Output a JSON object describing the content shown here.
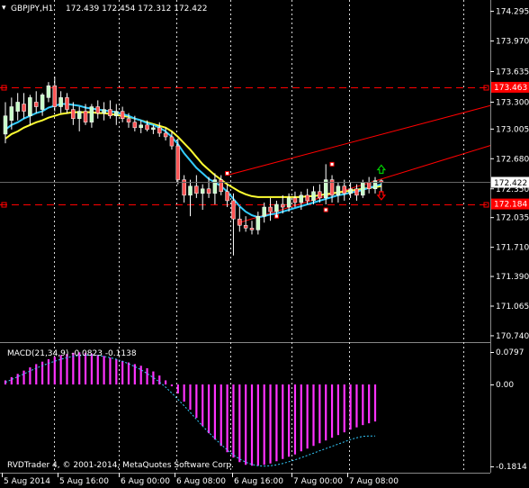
{
  "header": {
    "symbol_label": "GBPJPY,H1",
    "ohlc": "172.439 172.454 172.312 172.422",
    "dropdown_glyph": "▾"
  },
  "macd": {
    "label": "MACD(21,34,9) -0.0823 -0.1138",
    "axis_top": "0.0797",
    "axis_zero": "0.00",
    "axis_bottom": "-0.1814"
  },
  "footer_text": "RVDTrader 4, © 2001-2014, MetaQuotes Software Corp.",
  "colors": {
    "background": "#000000",
    "bull_candle": "#c8ffc8",
    "bear_candle": "#ff5555",
    "ma_fast": "#33ccff",
    "ma_slow": "#ffff33",
    "hline": "#ff0000",
    "channel": "#ff0000",
    "macd_hist": "#ff33ff",
    "macd_signal": "#33ccff",
    "grid_vertical": "#ffffff",
    "price_marker_current": "#ffffff",
    "price_marker_red": "#ff0000",
    "arrow_up": "#00cc00",
    "arrow_down": "#ff0000"
  },
  "chart_data": [
    {
      "type": "candlestick",
      "title": "GBPJPY,H1",
      "y_ticks": [
        "174.295",
        "173.970",
        "173.635",
        "173.300",
        "173.005",
        "172.680",
        "172.350",
        "172.035",
        "171.710",
        "171.390",
        "171.065",
        "170.740"
      ],
      "ylim": [
        170.69,
        174.38
      ],
      "current_price": "172.422",
      "hlines": [
        {
          "value": 173.463,
          "label": "173.463"
        },
        {
          "value": 172.184,
          "label": "172.184"
        }
      ],
      "x_labels": [
        "5 Aug 2014",
        "5 Aug 16:00",
        "6 Aug 00:00",
        "6 Aug 08:00",
        "6 Aug 16:00",
        "7 Aug 00:00",
        "7 Aug 08:00"
      ],
      "candles": [
        {
          "o": 172.95,
          "h": 173.3,
          "l": 172.85,
          "c": 173.15
        },
        {
          "o": 173.1,
          "h": 173.35,
          "l": 173.0,
          "c": 173.25
        },
        {
          "o": 173.2,
          "h": 173.4,
          "l": 173.1,
          "c": 173.3
        },
        {
          "o": 173.28,
          "h": 173.4,
          "l": 173.12,
          "c": 173.2
        },
        {
          "o": 173.15,
          "h": 173.38,
          "l": 173.05,
          "c": 173.35
        },
        {
          "o": 173.3,
          "h": 173.42,
          "l": 173.18,
          "c": 173.25
        },
        {
          "o": 173.22,
          "h": 173.4,
          "l": 173.15,
          "c": 173.38
        },
        {
          "o": 173.35,
          "h": 173.52,
          "l": 173.3,
          "c": 173.48
        },
        {
          "o": 173.48,
          "h": 173.58,
          "l": 173.2,
          "c": 173.25
        },
        {
          "o": 173.25,
          "h": 173.42,
          "l": 173.18,
          "c": 173.35
        },
        {
          "o": 173.35,
          "h": 173.4,
          "l": 173.18,
          "c": 173.22
        },
        {
          "o": 173.22,
          "h": 173.3,
          "l": 173.05,
          "c": 173.12
        },
        {
          "o": 173.12,
          "h": 173.25,
          "l": 172.98,
          "c": 173.2
        },
        {
          "o": 173.2,
          "h": 173.28,
          "l": 173.05,
          "c": 173.08
        },
        {
          "o": 173.08,
          "h": 173.28,
          "l": 173.02,
          "c": 173.25
        },
        {
          "o": 173.25,
          "h": 173.32,
          "l": 173.12,
          "c": 173.18
        },
        {
          "o": 173.18,
          "h": 173.3,
          "l": 173.1,
          "c": 173.22
        },
        {
          "o": 173.22,
          "h": 173.32,
          "l": 173.12,
          "c": 173.15
        },
        {
          "o": 173.15,
          "h": 173.28,
          "l": 173.05,
          "c": 173.2
        },
        {
          "o": 173.2,
          "h": 173.25,
          "l": 173.08,
          "c": 173.12
        },
        {
          "o": 173.12,
          "h": 173.18,
          "l": 173.02,
          "c": 173.08
        },
        {
          "o": 173.08,
          "h": 173.15,
          "l": 172.98,
          "c": 173.02
        },
        {
          "o": 173.02,
          "h": 173.1,
          "l": 172.96,
          "c": 173.05
        },
        {
          "o": 173.05,
          "h": 173.1,
          "l": 172.98,
          "c": 173.0
        },
        {
          "o": 173.0,
          "h": 173.05,
          "l": 172.95,
          "c": 173.02
        },
        {
          "o": 173.02,
          "h": 173.08,
          "l": 172.92,
          "c": 172.96
        },
        {
          "o": 172.96,
          "h": 173.02,
          "l": 172.88,
          "c": 172.92
        },
        {
          "o": 172.92,
          "h": 172.98,
          "l": 172.78,
          "c": 172.82
        },
        {
          "o": 172.82,
          "h": 172.9,
          "l": 172.4,
          "c": 172.45
        },
        {
          "o": 172.45,
          "h": 172.5,
          "l": 172.2,
          "c": 172.28
        },
        {
          "o": 172.28,
          "h": 172.45,
          "l": 172.05,
          "c": 172.38
        },
        {
          "o": 172.38,
          "h": 172.5,
          "l": 172.25,
          "c": 172.3
        },
        {
          "o": 172.3,
          "h": 172.4,
          "l": 172.12,
          "c": 172.35
        },
        {
          "o": 172.35,
          "h": 172.48,
          "l": 172.25,
          "c": 172.3
        },
        {
          "o": 172.3,
          "h": 172.52,
          "l": 172.18,
          "c": 172.45
        },
        {
          "o": 172.45,
          "h": 172.5,
          "l": 172.28,
          "c": 172.32
        },
        {
          "o": 172.32,
          "h": 172.4,
          "l": 172.15,
          "c": 172.22
        },
        {
          "o": 172.22,
          "h": 172.3,
          "l": 171.62,
          "c": 172.02
        },
        {
          "o": 172.02,
          "h": 172.15,
          "l": 171.88,
          "c": 171.95
        },
        {
          "o": 171.95,
          "h": 172.05,
          "l": 171.88,
          "c": 171.92
        },
        {
          "o": 171.92,
          "h": 172.0,
          "l": 171.85,
          "c": 171.9
        },
        {
          "o": 171.9,
          "h": 172.1,
          "l": 171.85,
          "c": 172.05
        },
        {
          "o": 172.05,
          "h": 172.2,
          "l": 171.98,
          "c": 172.15
        },
        {
          "o": 172.15,
          "h": 172.25,
          "l": 172.0,
          "c": 172.1
        },
        {
          "o": 172.1,
          "h": 172.22,
          "l": 172.05,
          "c": 172.18
        },
        {
          "o": 172.18,
          "h": 172.28,
          "l": 172.08,
          "c": 172.15
        },
        {
          "o": 172.15,
          "h": 172.3,
          "l": 172.1,
          "c": 172.25
        },
        {
          "o": 172.25,
          "h": 172.32,
          "l": 172.15,
          "c": 172.2
        },
        {
          "o": 172.2,
          "h": 172.32,
          "l": 172.12,
          "c": 172.28
        },
        {
          "o": 172.28,
          "h": 172.35,
          "l": 172.18,
          "c": 172.22
        },
        {
          "o": 172.22,
          "h": 172.38,
          "l": 172.18,
          "c": 172.32
        },
        {
          "o": 172.32,
          "h": 172.4,
          "l": 172.2,
          "c": 172.25
        },
        {
          "o": 172.25,
          "h": 172.62,
          "l": 172.18,
          "c": 172.45
        },
        {
          "o": 172.45,
          "h": 172.5,
          "l": 172.2,
          "c": 172.28
        },
        {
          "o": 172.28,
          "h": 172.42,
          "l": 172.2,
          "c": 172.38
        },
        {
          "o": 172.38,
          "h": 172.45,
          "l": 172.22,
          "c": 172.3
        },
        {
          "o": 172.3,
          "h": 172.42,
          "l": 172.25,
          "c": 172.35
        },
        {
          "o": 172.35,
          "h": 172.4,
          "l": 172.22,
          "c": 172.28
        },
        {
          "o": 172.28,
          "h": 172.45,
          "l": 172.25,
          "c": 172.42
        },
        {
          "o": 172.42,
          "h": 172.48,
          "l": 172.3,
          "c": 172.35
        },
        {
          "o": 172.35,
          "h": 172.48,
          "l": 172.3,
          "c": 172.44
        },
        {
          "o": 172.439,
          "h": 172.454,
          "l": 172.312,
          "c": 172.422
        }
      ],
      "ma_fast": [
        173.0,
        173.05,
        173.08,
        173.12,
        173.15,
        173.18,
        173.2,
        173.24,
        173.26,
        173.28,
        173.28,
        173.27,
        173.26,
        173.24,
        173.23,
        173.22,
        173.21,
        173.2,
        173.19,
        173.17,
        173.15,
        173.12,
        173.1,
        173.07,
        173.05,
        173.02,
        172.98,
        172.92,
        172.84,
        172.74,
        172.66,
        172.58,
        172.52,
        172.46,
        172.42,
        172.38,
        172.32,
        172.24,
        172.16,
        172.1,
        172.06,
        172.04,
        172.05,
        172.07,
        172.08,
        172.1,
        172.12,
        172.14,
        172.16,
        172.18,
        172.2,
        172.22,
        172.24,
        172.26,
        172.28,
        172.29,
        172.31,
        172.32,
        172.34,
        172.36,
        172.38,
        172.4
      ],
      "ma_slow": [
        172.9,
        172.95,
        172.98,
        173.02,
        173.05,
        173.08,
        173.1,
        173.13,
        173.15,
        173.17,
        173.18,
        173.19,
        173.19,
        173.19,
        173.19,
        173.18,
        173.18,
        173.17,
        173.16,
        173.15,
        173.14,
        173.12,
        173.1,
        173.08,
        173.06,
        173.04,
        173.02,
        172.98,
        172.92,
        172.85,
        172.78,
        172.7,
        172.62,
        172.56,
        172.5,
        172.45,
        172.4,
        172.36,
        172.32,
        172.29,
        172.27,
        172.26,
        172.26,
        172.26,
        172.26,
        172.26,
        172.26,
        172.26,
        172.26,
        172.27,
        172.27,
        172.28,
        172.29,
        172.3,
        172.31,
        172.32,
        172.33,
        172.34,
        172.35,
        172.36,
        172.37,
        172.38
      ],
      "channel_upper": [
        {
          "i": 36,
          "v": 172.5
        },
        {
          "i": 64,
          "v": 173.0
        }
      ],
      "channel_lower": [
        {
          "i": 38,
          "v": 171.98
        },
        {
          "i": 64,
          "v": 172.52
        }
      ],
      "channel_points": [
        {
          "i": 36,
          "v": 172.52,
          "label": "upper-start"
        },
        {
          "i": 53,
          "v": 172.62,
          "label": "upper-high"
        },
        {
          "i": 38,
          "v": 171.98,
          "label": "lower-start"
        },
        {
          "i": 44,
          "v": 172.05,
          "label": "lower-low-1"
        },
        {
          "i": 52,
          "v": 172.12,
          "label": "lower-low-2"
        }
      ],
      "arrows": [
        {
          "i": 61,
          "v": 172.56,
          "dir": "up"
        },
        {
          "i": 61,
          "v": 172.28,
          "dir": "down"
        }
      ]
    },
    {
      "type": "histogram",
      "title": "MACD(21,34,9) -0.0823 -0.1138",
      "ylim": [
        -0.1814,
        0.0797
      ],
      "hist": [
        0.01,
        0.018,
        0.026,
        0.034,
        0.042,
        0.05,
        0.056,
        0.062,
        0.068,
        0.072,
        0.075,
        0.078,
        0.079,
        0.078,
        0.076,
        0.073,
        0.07,
        0.066,
        0.062,
        0.058,
        0.054,
        0.05,
        0.046,
        0.04,
        0.032,
        0.022,
        0.01,
        -0.004,
        -0.02,
        -0.038,
        -0.056,
        -0.074,
        -0.092,
        -0.108,
        -0.122,
        -0.136,
        -0.15,
        -0.162,
        -0.172,
        -0.178,
        -0.18,
        -0.18,
        -0.178,
        -0.175,
        -0.17,
        -0.165,
        -0.16,
        -0.155,
        -0.148,
        -0.142,
        -0.136,
        -0.13,
        -0.124,
        -0.118,
        -0.112,
        -0.106,
        -0.1,
        -0.095,
        -0.09,
        -0.086,
        -0.082
      ],
      "signal": [
        0.005,
        0.012,
        0.019,
        0.026,
        0.033,
        0.04,
        0.046,
        0.052,
        0.057,
        0.062,
        0.066,
        0.069,
        0.071,
        0.072,
        0.072,
        0.071,
        0.069,
        0.066,
        0.062,
        0.057,
        0.051,
        0.044,
        0.036,
        0.027,
        0.017,
        0.006,
        -0.006,
        -0.019,
        -0.033,
        -0.047,
        -0.062,
        -0.077,
        -0.092,
        -0.106,
        -0.12,
        -0.133,
        -0.145,
        -0.156,
        -0.165,
        -0.172,
        -0.177,
        -0.18,
        -0.181,
        -0.18,
        -0.178,
        -0.175,
        -0.171,
        -0.167,
        -0.162,
        -0.157,
        -0.152,
        -0.147,
        -0.142,
        -0.137,
        -0.132,
        -0.127,
        -0.122,
        -0.118,
        -0.115,
        -0.114,
        -0.114
      ]
    }
  ]
}
